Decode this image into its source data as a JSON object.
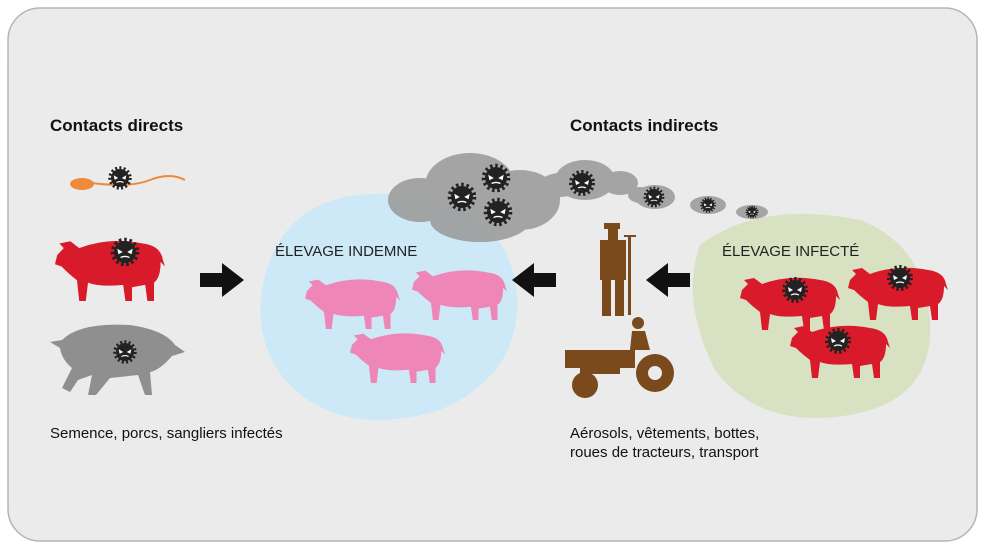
{
  "left": {
    "title": "Contacts directs",
    "caption": "Semence, porcs, sangliers infectés"
  },
  "right": {
    "title": "Contacts indirects",
    "caption": [
      "Aérosols, vêtements, bottes,",
      "roues de tracteurs, transport"
    ]
  },
  "farms": {
    "healthy": "ÉLEVAGE INDEMNE",
    "infected": "ÉLEVAGE INFECTÉ"
  }
}
